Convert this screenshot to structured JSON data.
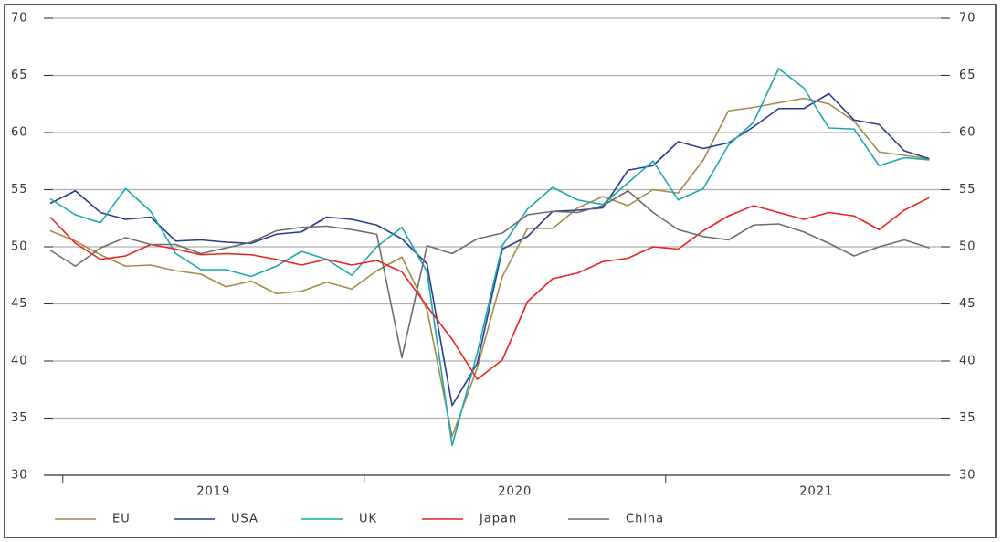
{
  "chart_data": {
    "type": "line",
    "categories": [
      null,
      null,
      null,
      null,
      null,
      null,
      null,
      null,
      null,
      null,
      null,
      null,
      null,
      null,
      null,
      null,
      null,
      null,
      null,
      null,
      null,
      null,
      null,
      null,
      null,
      null,
      null,
      null,
      null,
      null,
      null,
      null,
      null,
      null,
      null,
      null
    ],
    "year_labels": [
      "2019",
      "2020",
      "2021"
    ],
    "series": [
      {
        "name": "EU",
        "color": "#a58a4c",
        "values": [
          51.4,
          50.5,
          49.3,
          48.3,
          48.4,
          47.9,
          47.6,
          46.5,
          47.0,
          45.9,
          46.1,
          46.9,
          46.3,
          47.9,
          49.1,
          44.5,
          33.4,
          39.4,
          47.4,
          51.6,
          51.6,
          53.4,
          54.4,
          53.6,
          55.0,
          54.7,
          57.6,
          61.9,
          62.2,
          62.6,
          63.0,
          62.5,
          61.0,
          58.3,
          58.0,
          57.7
        ]
      },
      {
        "name": "USA",
        "color": "#2b3c8c",
        "values": [
          53.8,
          54.9,
          53.0,
          52.4,
          52.6,
          50.5,
          50.6,
          50.4,
          50.3,
          51.1,
          51.3,
          52.6,
          52.4,
          51.9,
          50.7,
          48.5,
          36.1,
          39.8,
          49.8,
          50.9,
          53.1,
          53.2,
          53.4,
          56.7,
          57.1,
          59.2,
          58.6,
          59.1,
          60.5,
          62.1,
          62.1,
          63.4,
          61.1,
          60.7,
          58.4,
          57.7
        ]
      },
      {
        "name": "UK",
        "color": "#19a9ae",
        "values": [
          54.2,
          52.8,
          52.1,
          55.1,
          53.1,
          49.4,
          48.0,
          48.0,
          47.4,
          48.3,
          49.6,
          48.9,
          47.5,
          50.0,
          51.7,
          47.8,
          32.6,
          40.7,
          50.1,
          53.3,
          55.2,
          54.1,
          53.7,
          55.6,
          57.5,
          54.1,
          55.1,
          58.9,
          60.9,
          65.6,
          63.9,
          60.4,
          60.3,
          57.1,
          57.8,
          57.6
        ]
      },
      {
        "name": "Japan",
        "color": "#e8231f",
        "values": [
          52.6,
          50.3,
          48.9,
          49.2,
          50.2,
          49.8,
          49.3,
          49.4,
          49.3,
          48.9,
          48.4,
          48.9,
          48.4,
          48.8,
          47.8,
          44.8,
          41.9,
          38.4,
          40.1,
          45.2,
          47.2,
          47.7,
          48.7,
          49.0,
          50.0,
          49.8,
          51.4,
          52.7,
          53.6,
          53.0,
          52.4,
          53.0,
          52.7,
          51.5,
          53.2,
          54.3
        ]
      },
      {
        "name": "China",
        "color": "#6d6d6d",
        "values": [
          49.7,
          48.3,
          49.9,
          50.8,
          50.2,
          50.2,
          49.4,
          49.9,
          50.4,
          51.4,
          51.7,
          51.8,
          51.5,
          51.1,
          40.3,
          50.1,
          49.4,
          50.7,
          51.2,
          52.8,
          53.1,
          53.0,
          53.6,
          54.9,
          53.0,
          51.5,
          50.9,
          50.6,
          51.9,
          52.0,
          51.3,
          50.3,
          49.2,
          50.0,
          50.6,
          49.9
        ]
      }
    ],
    "ylim": [
      30,
      70
    ],
    "yticks": [
      30,
      35,
      40,
      45,
      50,
      55,
      60,
      65,
      70
    ],
    "y2lim": [
      30,
      70
    ],
    "y2ticks": [
      30,
      35,
      40,
      45,
      50,
      55,
      60,
      65,
      70
    ],
    "grid": true
  }
}
